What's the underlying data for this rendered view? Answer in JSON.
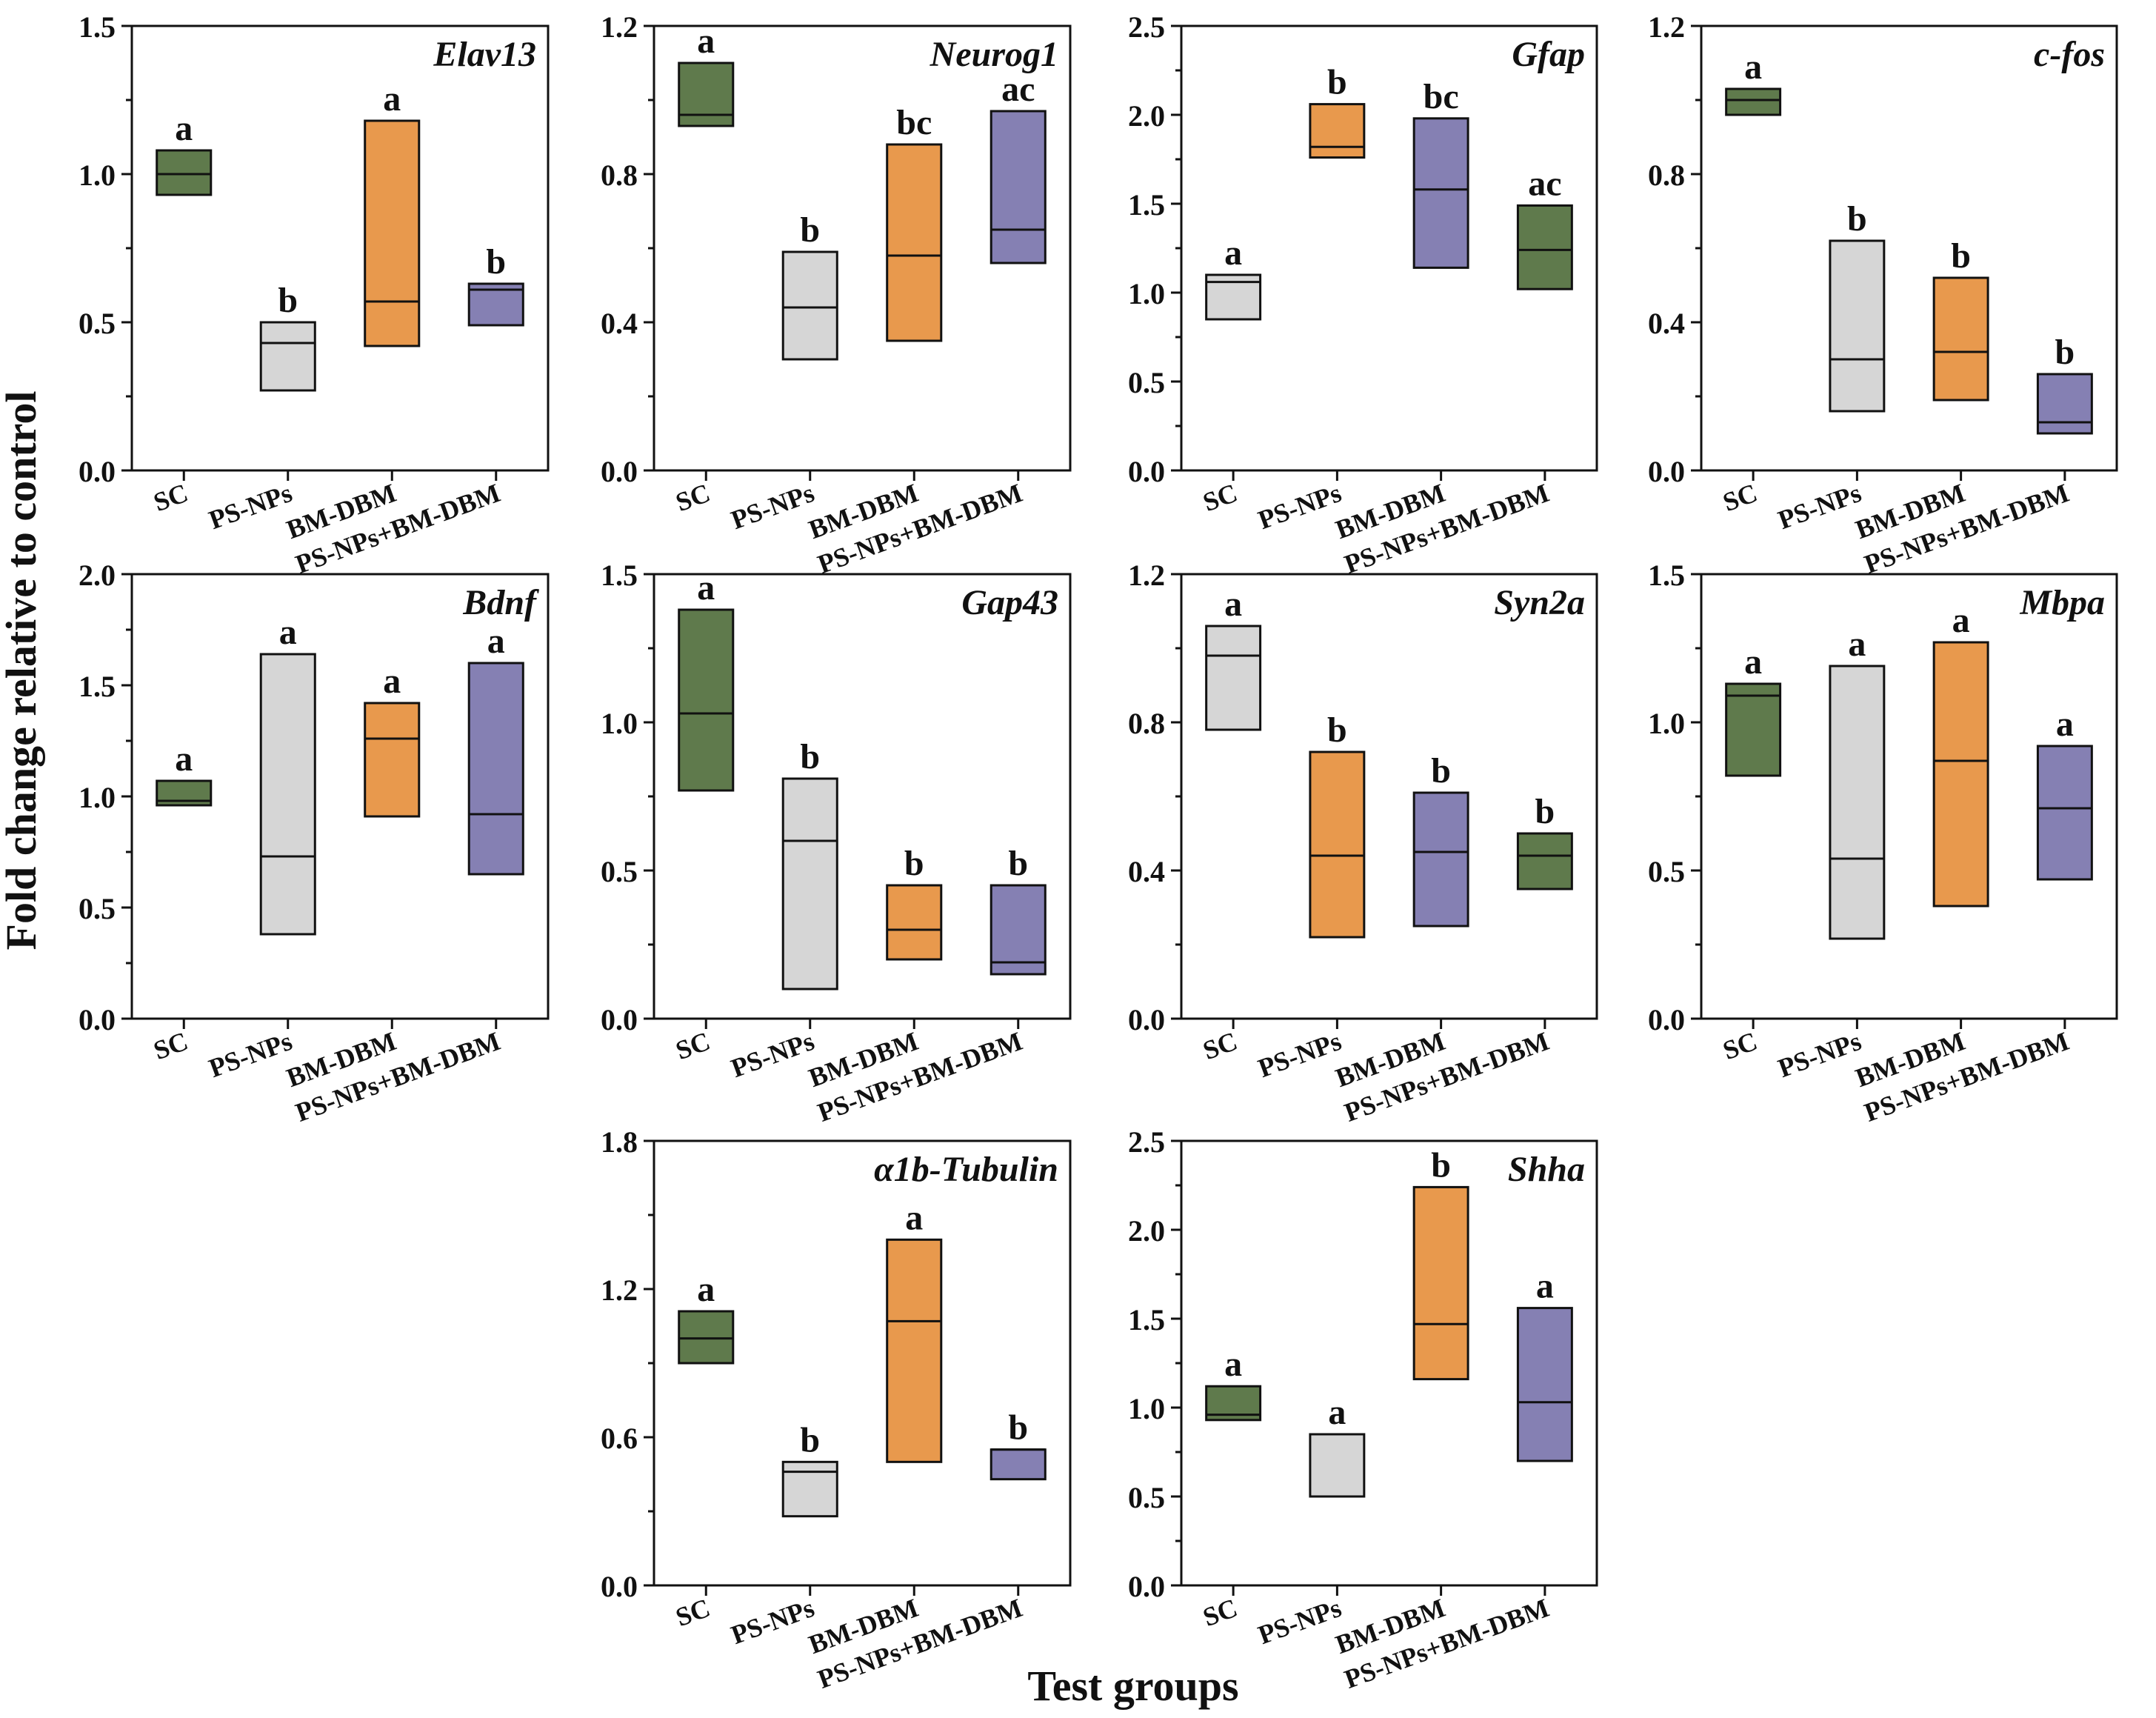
{
  "figure": {
    "ylabel": "Fold change relative to control",
    "xlabel": "Test groups"
  },
  "colors": {
    "green": "#5f7a4c",
    "grey": "#d6d6d6",
    "orange": "#e8994d",
    "purple": "#8580b3",
    "stroke": "#111111"
  },
  "chart_data": [
    {
      "type": "floating-bar",
      "title": "Elav13",
      "categories": [
        "SC",
        "PS-NPs",
        "BM-DBM",
        "PS-NPs+BM-DBM"
      ],
      "ylim": [
        0,
        1.5
      ],
      "yticks": [
        "0.0",
        "0.5",
        "1.0",
        "1.5"
      ],
      "series": [
        {
          "name": "SC",
          "min": 0.93,
          "max": 1.08,
          "mid": 1.0,
          "color": "green",
          "letter": "a"
        },
        {
          "name": "PS-NPs",
          "min": 0.27,
          "max": 0.5,
          "mid": 0.43,
          "color": "grey",
          "letter": "b"
        },
        {
          "name": "BM-DBM",
          "min": 0.42,
          "max": 1.18,
          "mid": 0.57,
          "color": "orange",
          "letter": "a"
        },
        {
          "name": "PS-NPs+BM-DBM",
          "min": 0.49,
          "max": 0.63,
          "mid": 0.61,
          "color": "purple",
          "letter": "b"
        }
      ]
    },
    {
      "type": "floating-bar",
      "title": "Neurog1",
      "categories": [
        "SC",
        "PS-NPs",
        "BM-DBM",
        "PS-NPs+BM-DBM"
      ],
      "ylim": [
        0,
        1.2
      ],
      "yticks": [
        "0.0",
        "0.4",
        "0.8",
        "1.2"
      ],
      "series": [
        {
          "name": "SC",
          "min": 0.93,
          "max": 1.1,
          "mid": 0.96,
          "color": "green",
          "letter": "a"
        },
        {
          "name": "PS-NPs",
          "min": 0.3,
          "max": 0.59,
          "mid": 0.44,
          "color": "grey",
          "letter": "b"
        },
        {
          "name": "BM-DBM",
          "min": 0.35,
          "max": 0.88,
          "mid": 0.58,
          "color": "orange",
          "letter": "bc"
        },
        {
          "name": "PS-NPs+BM-DBM",
          "min": 0.56,
          "max": 0.97,
          "mid": 0.65,
          "color": "purple",
          "letter": "ac"
        }
      ]
    },
    {
      "type": "floating-bar",
      "title": "Gfap",
      "categories": [
        "SC",
        "PS-NPs",
        "BM-DBM",
        "PS-NPs+BM-DBM"
      ],
      "ylim": [
        0,
        2.5
      ],
      "yticks": [
        "0.0",
        "0.5",
        "1.0",
        "1.5",
        "2.0",
        "2.5"
      ],
      "series": [
        {
          "name": "SC",
          "min": 0.85,
          "max": 1.1,
          "mid": 1.06,
          "color": "grey",
          "letter": "a"
        },
        {
          "name": "PS-NPs",
          "min": 1.76,
          "max": 2.06,
          "mid": 1.82,
          "color": "orange",
          "letter": "b"
        },
        {
          "name": "BM-DBM",
          "min": 1.14,
          "max": 1.98,
          "mid": 1.58,
          "color": "purple",
          "letter": "bc"
        },
        {
          "name": "PS-NPs+BM-DBM",
          "min": 1.02,
          "max": 1.49,
          "mid": 1.24,
          "color": "green",
          "letter": "ac"
        }
      ]
    },
    {
      "type": "floating-bar",
      "title": "c-fos",
      "categories": [
        "SC",
        "PS-NPs",
        "BM-DBM",
        "PS-NPs+BM-DBM"
      ],
      "ylim": [
        0,
        1.2
      ],
      "yticks": [
        "0.0",
        "0.4",
        "0.8",
        "1.2"
      ],
      "series": [
        {
          "name": "SC",
          "min": 0.96,
          "max": 1.03,
          "mid": 1.0,
          "color": "green",
          "letter": "a"
        },
        {
          "name": "PS-NPs",
          "min": 0.16,
          "max": 0.62,
          "mid": 0.3,
          "color": "grey",
          "letter": "b"
        },
        {
          "name": "BM-DBM",
          "min": 0.19,
          "max": 0.52,
          "mid": 0.32,
          "color": "orange",
          "letter": "b"
        },
        {
          "name": "PS-NPs+BM-DBM",
          "min": 0.1,
          "max": 0.26,
          "mid": 0.13,
          "color": "purple",
          "letter": "b"
        }
      ]
    },
    {
      "type": "floating-bar",
      "title": "Bdnf",
      "categories": [
        "SC",
        "PS-NPs",
        "BM-DBM",
        "PS-NPs+BM-DBM"
      ],
      "ylim": [
        0,
        2.0
      ],
      "yticks": [
        "0.0",
        "0.5",
        "1.0",
        "1.5",
        "2.0"
      ],
      "series": [
        {
          "name": "SC",
          "min": 0.96,
          "max": 1.07,
          "mid": 0.98,
          "color": "green",
          "letter": "a"
        },
        {
          "name": "PS-NPs",
          "min": 0.38,
          "max": 1.64,
          "mid": 0.73,
          "color": "grey",
          "letter": "a"
        },
        {
          "name": "BM-DBM",
          "min": 0.91,
          "max": 1.42,
          "mid": 1.26,
          "color": "orange",
          "letter": "a"
        },
        {
          "name": "PS-NPs+BM-DBM",
          "min": 0.65,
          "max": 1.6,
          "mid": 0.92,
          "color": "purple",
          "letter": "a"
        }
      ]
    },
    {
      "type": "floating-bar",
      "title": "Gap43",
      "categories": [
        "SC",
        "PS-NPs",
        "BM-DBM",
        "PS-NPs+BM-DBM"
      ],
      "ylim": [
        0,
        1.5
      ],
      "yticks": [
        "0.0",
        "0.5",
        "1.0",
        "1.5"
      ],
      "series": [
        {
          "name": "SC",
          "min": 0.77,
          "max": 1.38,
          "mid": 1.03,
          "color": "green",
          "letter": "a"
        },
        {
          "name": "PS-NPs",
          "min": 0.1,
          "max": 0.81,
          "mid": 0.6,
          "color": "grey",
          "letter": "b"
        },
        {
          "name": "BM-DBM",
          "min": 0.2,
          "max": 0.45,
          "mid": 0.3,
          "color": "orange",
          "letter": "b"
        },
        {
          "name": "PS-NPs+BM-DBM",
          "min": 0.15,
          "max": 0.45,
          "mid": 0.19,
          "color": "purple",
          "letter": "b"
        }
      ]
    },
    {
      "type": "floating-bar",
      "title": "Syn2a",
      "categories": [
        "SC",
        "PS-NPs",
        "BM-DBM",
        "PS-NPs+BM-DBM"
      ],
      "ylim": [
        0,
        1.2
      ],
      "yticks": [
        "0.0",
        "0.4",
        "0.8",
        "1.2"
      ],
      "series": [
        {
          "name": "SC",
          "min": 0.78,
          "max": 1.06,
          "mid": 0.98,
          "color": "grey",
          "letter": "a"
        },
        {
          "name": "PS-NPs",
          "min": 0.22,
          "max": 0.72,
          "mid": 0.44,
          "color": "orange",
          "letter": "b"
        },
        {
          "name": "BM-DBM",
          "min": 0.25,
          "max": 0.61,
          "mid": 0.45,
          "color": "purple",
          "letter": "b"
        },
        {
          "name": "PS-NPs+BM-DBM",
          "min": 0.35,
          "max": 0.5,
          "mid": 0.44,
          "color": "green",
          "letter": "b"
        }
      ]
    },
    {
      "type": "floating-bar",
      "title": "Mbpa",
      "categories": [
        "SC",
        "PS-NPs",
        "BM-DBM",
        "PS-NPs+BM-DBM"
      ],
      "ylim": [
        0,
        1.5
      ],
      "yticks": [
        "0.0",
        "0.5",
        "1.0",
        "1.5"
      ],
      "series": [
        {
          "name": "SC",
          "min": 0.82,
          "max": 1.13,
          "mid": 1.09,
          "color": "green",
          "letter": "a"
        },
        {
          "name": "PS-NPs",
          "min": 0.27,
          "max": 1.19,
          "mid": 0.54,
          "color": "grey",
          "letter": "a"
        },
        {
          "name": "BM-DBM",
          "min": 0.38,
          "max": 1.27,
          "mid": 0.87,
          "color": "orange",
          "letter": "a"
        },
        {
          "name": "PS-NPs+BM-DBM",
          "min": 0.47,
          "max": 0.92,
          "mid": 0.71,
          "color": "purple",
          "letter": "a"
        }
      ]
    },
    {
      "type": "floating-bar",
      "title": "α1b-Tubulin",
      "categories": [
        "SC",
        "PS-NPs",
        "BM-DBM",
        "PS-NPs+BM-DBM"
      ],
      "ylim": [
        0,
        1.8
      ],
      "yticks": [
        "0.0",
        "0.6",
        "1.2",
        "1.8"
      ],
      "series": [
        {
          "name": "SC",
          "min": 0.9,
          "max": 1.11,
          "mid": 1.0,
          "color": "green",
          "letter": "a"
        },
        {
          "name": "PS-NPs",
          "min": 0.28,
          "max": 0.5,
          "mid": 0.46,
          "color": "grey",
          "letter": "b"
        },
        {
          "name": "BM-DBM",
          "min": 0.5,
          "max": 1.4,
          "mid": 1.07,
          "color": "orange",
          "letter": "a"
        },
        {
          "name": "PS-NPs+BM-DBM",
          "min": 0.43,
          "max": 0.55,
          "mid": 0.55,
          "color": "purple",
          "letter": "b"
        }
      ]
    },
    {
      "type": "floating-bar",
      "title": "Shha",
      "categories": [
        "SC",
        "PS-NPs",
        "BM-DBM",
        "PS-NPs+BM-DBM"
      ],
      "ylim": [
        0,
        2.5
      ],
      "yticks": [
        "0.0",
        "0.5",
        "1.0",
        "1.5",
        "2.0",
        "2.5"
      ],
      "series": [
        {
          "name": "SC",
          "min": 0.93,
          "max": 1.12,
          "mid": 0.96,
          "color": "green",
          "letter": "a"
        },
        {
          "name": "PS-NPs",
          "min": 0.5,
          "max": 0.85,
          "mid": 0.85,
          "color": "grey",
          "letter": "a"
        },
        {
          "name": "BM-DBM",
          "min": 1.16,
          "max": 2.24,
          "mid": 1.47,
          "color": "orange",
          "letter": "b"
        },
        {
          "name": "PS-NPs+BM-DBM",
          "min": 0.7,
          "max": 1.56,
          "mid": 1.03,
          "color": "purple",
          "letter": "a"
        }
      ]
    }
  ]
}
